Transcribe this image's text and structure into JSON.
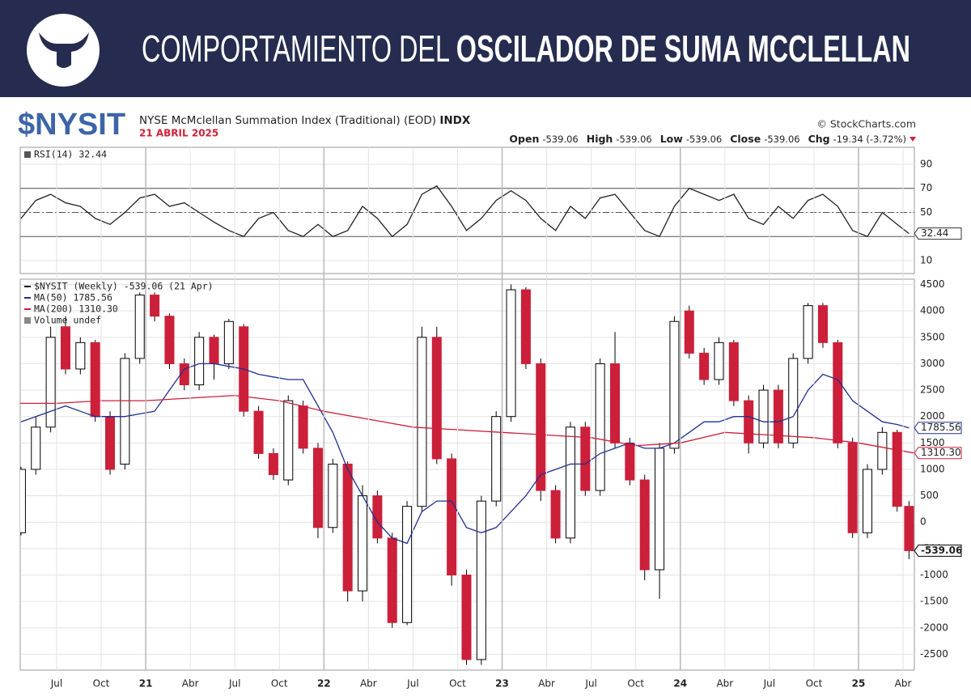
{
  "header": {
    "title_light": "COMPORTAMIENTO DEL ",
    "title_bold": "OSCILADOR DE SUMA MCCLELLAN"
  },
  "chart_header": {
    "symbol": "$NYSIT",
    "description": "NYSE McMclellan Summation Index (Traditional) (EOD)",
    "exchange": "INDX",
    "date": "21 ABRIL 2025",
    "source": "© StockCharts.com",
    "quote": [
      {
        "label": "Open",
        "value": "-539.06"
      },
      {
        "label": "High",
        "value": "-539.06"
      },
      {
        "label": "Low",
        "value": "-539.06"
      },
      {
        "label": "Close",
        "value": "-539.06"
      },
      {
        "label": "Chg",
        "value": "-19.34 (-3.72%)"
      }
    ]
  },
  "chart_data": [
    {
      "type": "line",
      "title": "RSI(14) 32.44",
      "x": [
        3.6,
        4.6,
        5.6,
        6.6,
        7.6,
        8.6,
        9.6,
        10.6,
        11.6,
        12.6,
        13.6,
        14.6,
        15.6,
        16.6,
        17.6,
        18.6,
        19.6,
        20.6,
        21.6,
        22.6,
        23.6,
        24.6,
        25.6,
        26.6,
        27.6,
        28.6,
        29.6,
        30.6,
        31.6,
        32.6,
        33.6,
        34.6,
        35.6,
        36.6,
        37.6,
        38.6,
        39.6,
        40.6,
        41.6,
        42.6,
        43.6,
        44.6,
        45.6,
        46.6,
        47.6,
        48.6,
        49.6,
        50.6,
        51.6,
        52.6,
        53.6,
        54.6,
        55.6,
        56.6,
        57.6,
        58.6,
        59.6,
        60.6,
        61.6,
        62.6,
        63.4
      ],
      "series": [
        {
          "color": "#222222",
          "values": [
            45,
            60,
            65,
            58,
            55,
            45,
            40,
            50,
            62,
            65,
            55,
            58,
            50,
            42,
            35,
            30,
            45,
            50,
            35,
            30,
            40,
            30,
            35,
            55,
            45,
            30,
            40,
            65,
            72,
            55,
            35,
            45,
            60,
            68,
            60,
            45,
            35,
            55,
            45,
            62,
            65,
            50,
            35,
            30,
            55,
            70,
            65,
            60,
            65,
            45,
            40,
            55,
            45,
            60,
            65,
            55,
            35,
            30,
            50,
            40,
            32.44
          ]
        }
      ],
      "xlim": [
        3.55,
        63.76
      ],
      "ylim": [
        -0.8,
        104.1
      ],
      "yticks": [
        10,
        50,
        70,
        90
      ],
      "grid": true,
      "ref_lines": [
        30,
        70
      ],
      "mid_line": 50,
      "price_tags": [
        {
          "value": 32.44,
          "label": "32.44",
          "color": "#333333"
        }
      ]
    },
    {
      "type": "candlestick",
      "x": [
        3.6,
        4.6,
        5.6,
        6.6,
        7.6,
        8.6,
        9.6,
        10.6,
        11.6,
        12.6,
        13.6,
        14.6,
        15.6,
        16.6,
        17.6,
        18.6,
        19.6,
        20.6,
        21.6,
        22.6,
        23.6,
        24.6,
        25.6,
        26.6,
        27.6,
        28.6,
        29.6,
        30.6,
        31.6,
        32.6,
        33.6,
        34.6,
        35.6,
        36.6,
        37.6,
        38.6,
        39.6,
        40.6,
        41.6,
        42.6,
        43.6,
        44.6,
        45.6,
        46.6,
        47.6,
        48.6,
        49.6,
        50.6,
        51.6,
        52.6,
        53.6,
        54.6,
        55.6,
        56.6,
        57.6,
        58.6,
        59.6,
        60.6,
        61.6,
        62.6,
        63.4
      ],
      "series": [
        {
          "name": "$NYSIT (Weekly) -539.06 (21 Apr)",
          "up_color": "#ffffff",
          "down_color": "#cc1f3a",
          "outline": "#000000",
          "open": [
            -200,
            1000,
            1800,
            3700,
            2900,
            3400,
            2000,
            1100,
            3100,
            4300,
            3900,
            3000,
            2600,
            3500,
            3000,
            3700,
            2100,
            1300,
            800,
            2200,
            1400,
            -100,
            1100,
            -1300,
            500,
            -300,
            -1900,
            300,
            3500,
            1200,
            -1000,
            -2600,
            400,
            2000,
            4400,
            3000,
            600,
            -300,
            1800,
            600,
            3000,
            1500,
            800,
            -900,
            1400,
            4000,
            3200,
            2700,
            3400,
            2300,
            1500,
            2500,
            1500,
            3100,
            4100,
            3400,
            1500,
            -200,
            1000,
            1700,
            300
          ],
          "high": [
            1050,
            2000,
            3700,
            3900,
            3500,
            3450,
            2100,
            3200,
            4350,
            4350,
            3950,
            3100,
            3600,
            3550,
            3850,
            3750,
            2200,
            1400,
            2400,
            2300,
            1500,
            1200,
            1150,
            700,
            600,
            -200,
            400,
            3700,
            3700,
            1300,
            -900,
            500,
            2100,
            4500,
            4450,
            3100,
            700,
            1900,
            1900,
            3100,
            3600,
            1600,
            900,
            1500,
            3900,
            4100,
            3300,
            3500,
            3450,
            2400,
            2600,
            2600,
            3200,
            4150,
            4150,
            3450,
            1600,
            1100,
            1800,
            1750,
            400
          ],
          "low": [
            -250,
            900,
            1700,
            2800,
            2800,
            1900,
            900,
            1000,
            3000,
            3800,
            2900,
            2500,
            2500,
            2700,
            2900,
            2000,
            1200,
            800,
            700,
            1300,
            -300,
            -200,
            -1500,
            -1500,
            -400,
            -2000,
            -1950,
            200,
            1100,
            -1200,
            -2700,
            -2700,
            300,
            1900,
            2900,
            400,
            -400,
            -400,
            500,
            500,
            1400,
            700,
            -1100,
            -1450,
            1300,
            3100,
            2600,
            2600,
            2200,
            1300,
            1400,
            1400,
            1400,
            3000,
            3300,
            1400,
            -300,
            -300,
            900,
            200,
            -700
          ],
          "close": [
            1000,
            1800,
            3500,
            2900,
            3400,
            2000,
            1000,
            3100,
            4300,
            3900,
            3000,
            2600,
            3500,
            3000,
            3800,
            2100,
            1300,
            900,
            2300,
            1400,
            -100,
            1100,
            -1300,
            500,
            -300,
            -1900,
            300,
            3500,
            1200,
            -1000,
            -2600,
            400,
            2000,
            4400,
            3000,
            600,
            -300,
            1800,
            600,
            3000,
            1500,
            800,
            -900,
            1400,
            3800,
            3200,
            2700,
            3400,
            2300,
            1500,
            2500,
            1500,
            3100,
            4100,
            3400,
            1500,
            -200,
            1000,
            1700,
            300,
            -539.06
          ]
        },
        {
          "name": "MA(50) 1785.56",
          "color": "#1f2f8f",
          "values": [
            1900,
            2000,
            2100,
            2200,
            2100,
            2000,
            2000,
            2000,
            2050,
            2100,
            2500,
            2900,
            3000,
            3000,
            2950,
            2900,
            2800,
            2750,
            2700,
            2700,
            2200,
            1700,
            1000,
            500,
            0,
            -300,
            -400,
            200,
            400,
            400,
            -100,
            -200,
            -100,
            200,
            500,
            900,
            1000,
            1100,
            1100,
            1300,
            1400,
            1500,
            1400,
            1400,
            1500,
            1700,
            1900,
            1900,
            2000,
            2000,
            1900,
            1900,
            2000,
            2500,
            2800,
            2700,
            2300,
            2100,
            1900,
            1850,
            1785.56
          ]
        },
        {
          "name": "MA(200) 1310.30",
          "color": "#cc1f3a",
          "x": [
            3.55,
            6,
            9,
            12,
            15,
            18,
            21,
            24,
            27,
            30,
            33,
            36,
            39,
            42,
            45,
            48,
            51,
            54,
            57,
            60,
            63.7
          ],
          "values": [
            2250,
            2250,
            2300,
            2300,
            2350,
            2400,
            2300,
            2100,
            1950,
            1800,
            1750,
            1700,
            1650,
            1600,
            1450,
            1500,
            1700,
            1650,
            1600,
            1500,
            1310.3
          ]
        }
      ],
      "legend_extra": "Volume undef",
      "xlim": [
        3.55,
        63.76
      ],
      "ylim": [
        -2800,
        4600
      ],
      "yticks": [
        -2500,
        -2000,
        -1500,
        -1000,
        -500,
        0,
        500,
        1000,
        1500,
        2000,
        2500,
        3000,
        3500,
        4000,
        4500
      ],
      "grid": true,
      "xticks": [
        {
          "value": 6,
          "label": "Jul"
        },
        {
          "value": 9,
          "label": "Oct"
        },
        {
          "value": 12,
          "label": "21"
        },
        {
          "value": 15,
          "label": "Abr"
        },
        {
          "value": 18,
          "label": "Jul"
        },
        {
          "value": 21,
          "label": "Oct"
        },
        {
          "value": 24,
          "label": "22"
        },
        {
          "value": 27,
          "label": "Abr"
        },
        {
          "value": 30,
          "label": "Jul"
        },
        {
          "value": 33,
          "label": "Oct"
        },
        {
          "value": 36,
          "label": "23"
        },
        {
          "value": 39,
          "label": "Abr"
        },
        {
          "value": 42,
          "label": "Jul"
        },
        {
          "value": 45,
          "label": "Oct"
        },
        {
          "value": 48,
          "label": "24"
        },
        {
          "value": 51,
          "label": "Abr"
        },
        {
          "value": 54,
          "label": "Jul"
        },
        {
          "value": 57,
          "label": "Oct"
        },
        {
          "value": 60,
          "label": "25"
        },
        {
          "value": 63,
          "label": "Abr"
        }
      ],
      "price_tags": [
        {
          "value": 1785.56,
          "label": "1785.56",
          "color": "#1f2f8f"
        },
        {
          "value": 1310.3,
          "label": "1310.30",
          "color": "#cc1f3a"
        },
        {
          "value": -539.06,
          "label": "-539.06",
          "color": "#000000"
        }
      ]
    }
  ]
}
